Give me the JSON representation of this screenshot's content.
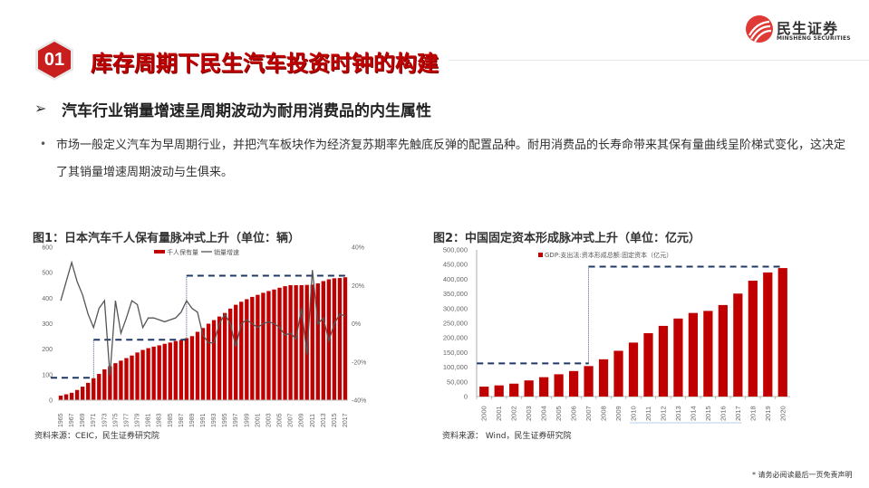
{
  "header": {
    "section_number": "01",
    "title": "库存周期下民生汽车投资时钟的构建",
    "logo": {
      "name_cn": "民生证券",
      "name_en": "MINSHENG SECURITIES",
      "brand_color": "#e03a36"
    }
  },
  "section": {
    "arrow": "➢",
    "heading": "汽车行业销量增速呈周期波动为耐用消费品的内生属性",
    "bullet": "•",
    "body": "市场一般定义汽车为早周期行业，并把汽车板块作为经济复苏期率先触底反弹的配置品种。耐用消费品的长寿命带来其保有量曲线呈阶梯式变化，这决定了其销量增速周期波动与生俱来。"
  },
  "charts": {
    "fig1": {
      "title": "图1：日本汽车千人保有量脉冲式上升（单位：辆）",
      "source": "资料来源：CEIC，民生证券研究院"
    },
    "fig2": {
      "title": "图2：中国固定资本形成脉冲式上升（单位：亿元）",
      "source": "资料来源： Wind，民生证券研究院"
    }
  },
  "footer": {
    "disclaimer": "* 请务必阅读最后一页免责声明"
  },
  "colors": {
    "accent": "#c00000",
    "bar": "#c00000",
    "line": "#555555",
    "dash": "#1f3864"
  },
  "chart_data": [
    {
      "type": "bar",
      "title": "图1：日本汽车千人保有量脉冲式上升（单位：辆）",
      "legend": [
        "千人保有量",
        "销量增速"
      ],
      "legend_position": "top",
      "grid": false,
      "categories": [
        1965,
        1966,
        1967,
        1968,
        1969,
        1970,
        1971,
        1972,
        1973,
        1974,
        1975,
        1976,
        1977,
        1978,
        1979,
        1980,
        1981,
        1982,
        1983,
        1984,
        1985,
        1986,
        1987,
        1988,
        1989,
        1990,
        1991,
        1992,
        1993,
        1994,
        1995,
        1996,
        1997,
        1998,
        1999,
        2000,
        2001,
        2002,
        2003,
        2004,
        2005,
        2006,
        2007,
        2008,
        2009,
        2010,
        2011,
        2012,
        2013,
        2014,
        2015,
        2016,
        2017
      ],
      "x_tick_labels": [
        "1965",
        "1967",
        "1969",
        "1971",
        "1973",
        "1975",
        "1977",
        "1979",
        "1981",
        "1983",
        "1985",
        "1987",
        "1989",
        "1991",
        "1993",
        "1995",
        "1997",
        "1999",
        "2001",
        "2003",
        "2005",
        "2007",
        "2009",
        "2011",
        "2013",
        "2015",
        "2017"
      ],
      "series": [
        {
          "name": "千人保有量",
          "type": "bar",
          "axis": "left",
          "values": [
            18,
            23,
            29,
            40,
            53,
            68,
            86,
            103,
            121,
            133,
            145,
            155,
            165,
            175,
            187,
            197,
            204,
            210,
            215,
            221,
            226,
            232,
            236,
            243,
            251,
            268,
            283,
            300,
            314,
            328,
            342,
            359,
            374,
            386,
            396,
            405,
            413,
            421,
            428,
            434,
            441,
            447,
            451,
            451,
            451,
            452,
            453,
            458,
            467,
            474,
            478,
            479,
            482
          ]
        },
        {
          "name": "销量增速",
          "type": "line",
          "axis": "right",
          "values": [
            12,
            22,
            32,
            22,
            15,
            5,
            -2,
            8,
            12,
            -27,
            12,
            -5,
            3,
            12,
            10,
            -2,
            3,
            3,
            2,
            1,
            2,
            3,
            6,
            12,
            8,
            6,
            -6,
            -10,
            -10,
            0,
            5,
            0,
            -12,
            0,
            2,
            0,
            -2,
            0,
            1,
            0,
            -2,
            -6,
            -5,
            -8,
            8,
            -16,
            28,
            0,
            3,
            -9,
            0,
            5,
            4
          ]
        }
      ],
      "ylim_left": [
        0,
        600
      ],
      "yticks_left": [
        0,
        100,
        200,
        300,
        400,
        500,
        600
      ],
      "ylim_right": [
        "-40%",
        "40%"
      ],
      "yticks_right": [
        "-40%",
        "-20%",
        "0%",
        "20%",
        "40%"
      ],
      "annotations": [
        {
          "type": "step-dashed",
          "segments": [
            {
              "from": 1965,
              "to": 1971,
              "y": 88
            },
            {
              "from": 1971,
              "to": 1988,
              "y": 237
            },
            {
              "from": 1988,
              "to": 2017,
              "y": 488
            }
          ]
        }
      ]
    },
    {
      "type": "bar",
      "title": "图2：中国固定资本形成脉冲式上升（单位：亿元）",
      "legend": [
        "GDP:支出法:资本形成总额:固定资本（亿元）"
      ],
      "legend_position": "top",
      "grid": false,
      "categories": [
        "2000",
        "2001",
        "2002",
        "2003",
        "2004",
        "2005",
        "2006",
        "2007",
        "2008",
        "2009",
        "2010",
        "2011",
        "2012",
        "2013",
        "2014",
        "2015",
        "2016",
        "2017",
        "2018",
        "2019",
        "2020"
      ],
      "values": [
        34000,
        38000,
        44000,
        55000,
        66000,
        76000,
        87000,
        104000,
        127000,
        156000,
        184000,
        216000,
        241000,
        266000,
        285000,
        292000,
        312000,
        351000,
        395000,
        423000,
        438000
      ],
      "ylim": [
        0,
        500000
      ],
      "yticks": [
        "0",
        "50,000",
        "100,000",
        "150,000",
        "200,000",
        "250,000",
        "300,000",
        "350,000",
        "400,000",
        "450,000",
        "500,000"
      ],
      "annotations": [
        {
          "type": "step-dashed",
          "segments": [
            {
              "from": "2000",
              "to": "2007",
              "y": 113000
            },
            {
              "from": "2007",
              "to": "2020",
              "y": 443000
            }
          ]
        }
      ]
    }
  ]
}
